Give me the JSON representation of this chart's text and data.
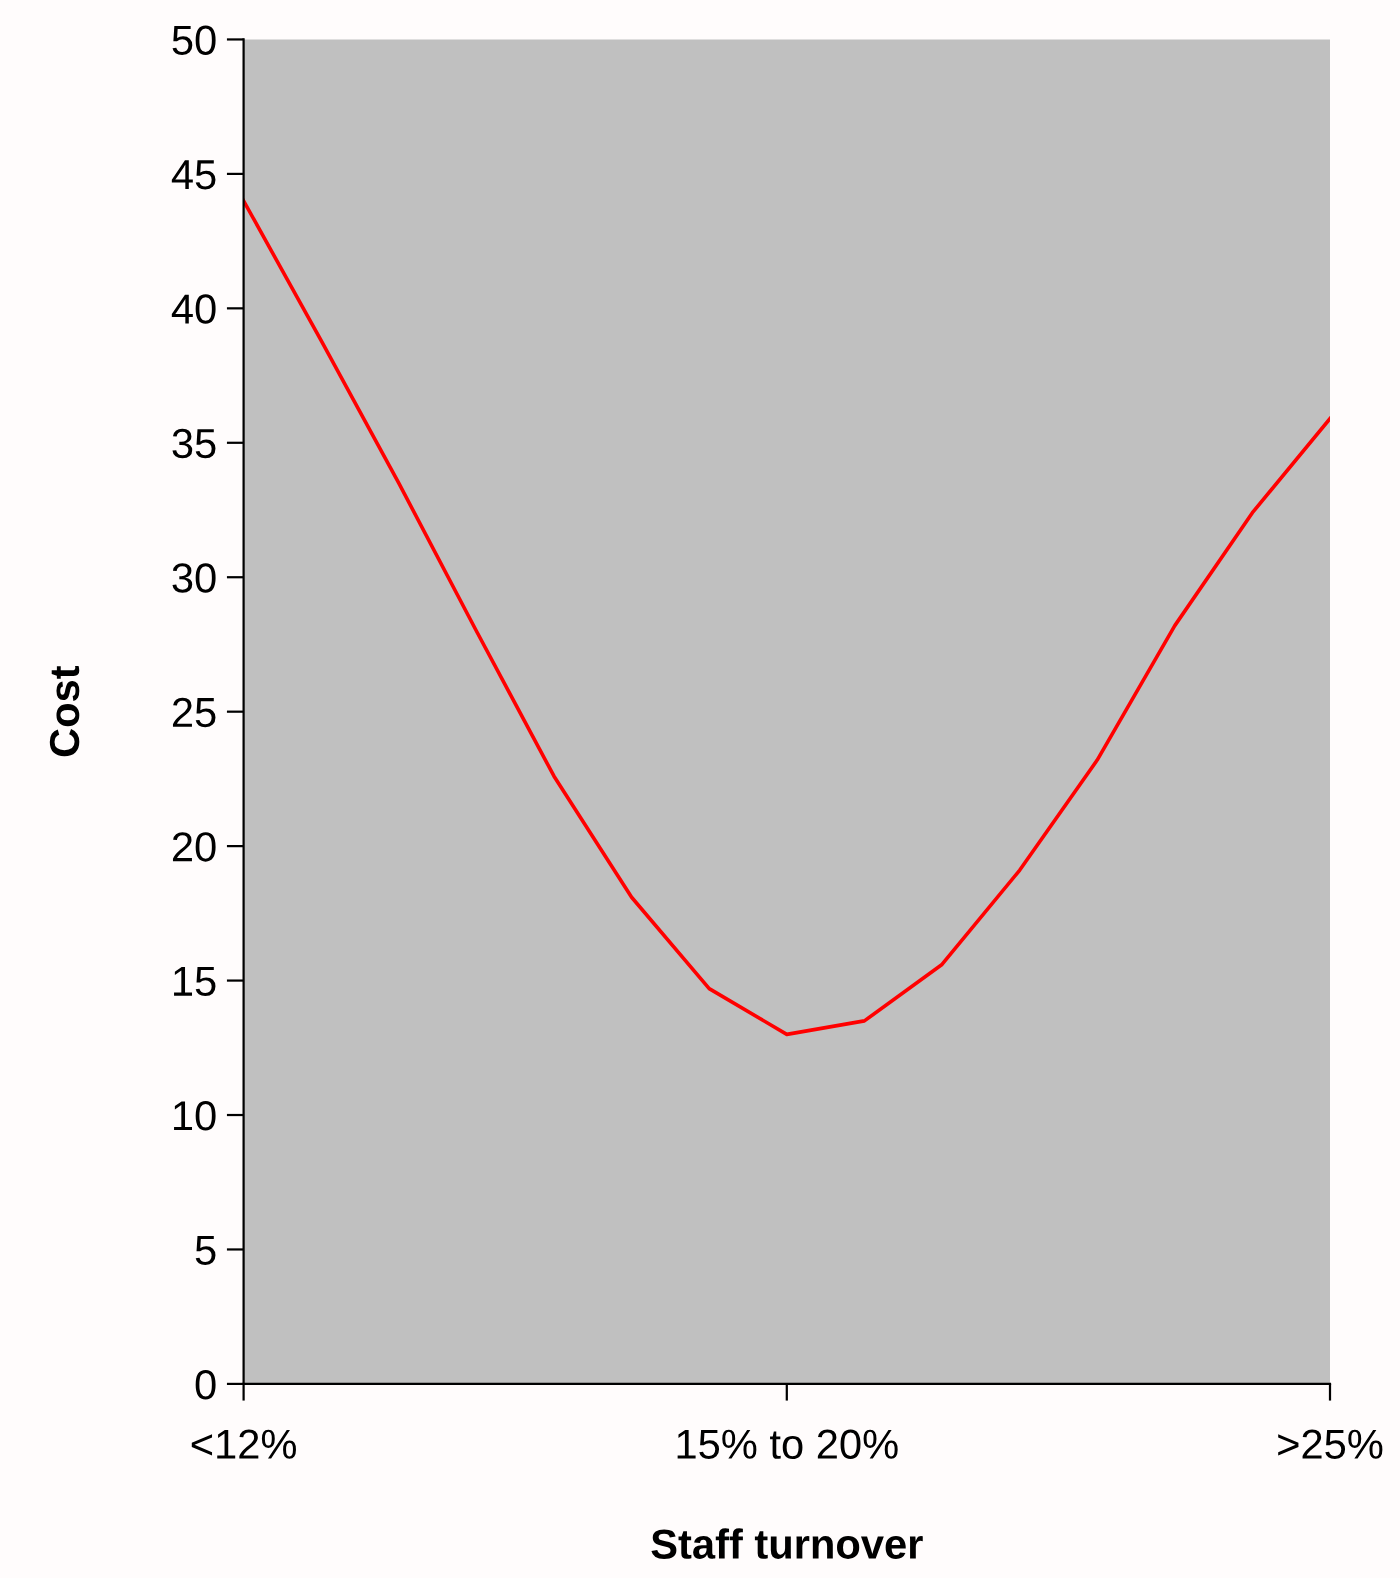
{
  "chart_data": {
    "type": "line",
    "xlabel": "Staff turnover",
    "ylabel": "Cost",
    "categories": [
      "<12%",
      null,
      null,
      null,
      null,
      null,
      null,
      "15% to 20%",
      null,
      null,
      null,
      null,
      null,
      null,
      ">25%"
    ],
    "series": [
      {
        "color": "#ff0000",
        "values": [
          44,
          38.8,
          33.5,
          28.0,
          22.6,
          18.1,
          14.7,
          13.0,
          13.5,
          15.6,
          19.1,
          23.2,
          28.2,
          32.4,
          35.9
        ]
      }
    ],
    "ylim": [
      0,
      50
    ],
    "yticks": [
      0,
      5,
      10,
      15,
      20,
      25,
      30,
      35,
      40,
      45,
      50
    ],
    "grid": false,
    "marker": "none",
    "line_style": "solid"
  }
}
